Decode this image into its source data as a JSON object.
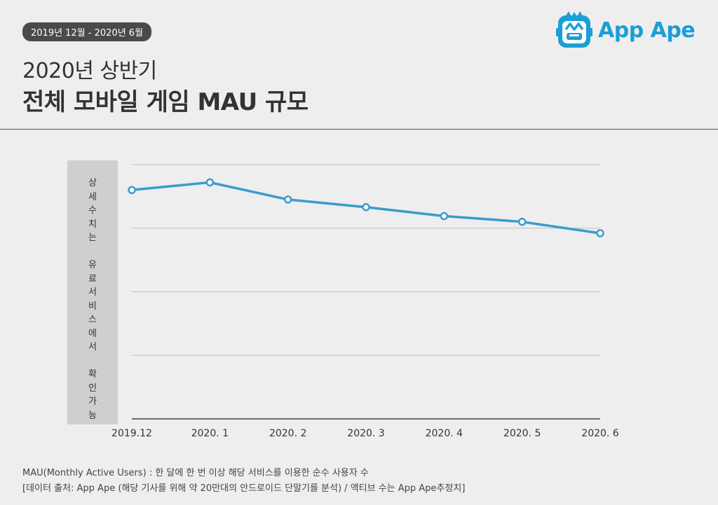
{
  "header": {
    "date_range": "2019년 12월 - 2020년 6월",
    "title_line1": "2020년 상반기",
    "title_line2": "전체 모바일 게임 MAU 규모"
  },
  "brand": {
    "name": "App Ape",
    "color": "#1a9fd6",
    "icon": "ape-face-icon"
  },
  "side_note": {
    "chars": [
      "상",
      "세",
      "수",
      "치",
      "는",
      "",
      "유",
      "료",
      "서",
      "비",
      "스",
      "에",
      "서",
      "",
      "확",
      "인",
      "가",
      "능"
    ]
  },
  "chart_data": {
    "type": "line",
    "categories": [
      "2019.12",
      "2020. 1",
      "2020. 2",
      "2020. 3",
      "2020. 4",
      "2020. 5",
      "2020. 6"
    ],
    "series": [
      {
        "values": [
          3.6,
          3.72,
          3.45,
          3.33,
          3.19,
          3.1,
          2.92
        ],
        "color": "#3a9ccc"
      }
    ],
    "ylim": [
      0,
      4
    ],
    "grid": true,
    "ytick_labels": "hidden",
    "ylabel": "",
    "xlabel": ""
  },
  "footer": {
    "line1": "MAU(Monthly Active Users) : 한 달에 한 번 이상 해당 서비스를 이용한 순수 사용자 수",
    "line2": "[데이터 출처: App Ape (해당 기사를 위해 약 20만대의 안드로이드 단말기를 분석) / 액티브 수는 App Ape추정치]"
  }
}
